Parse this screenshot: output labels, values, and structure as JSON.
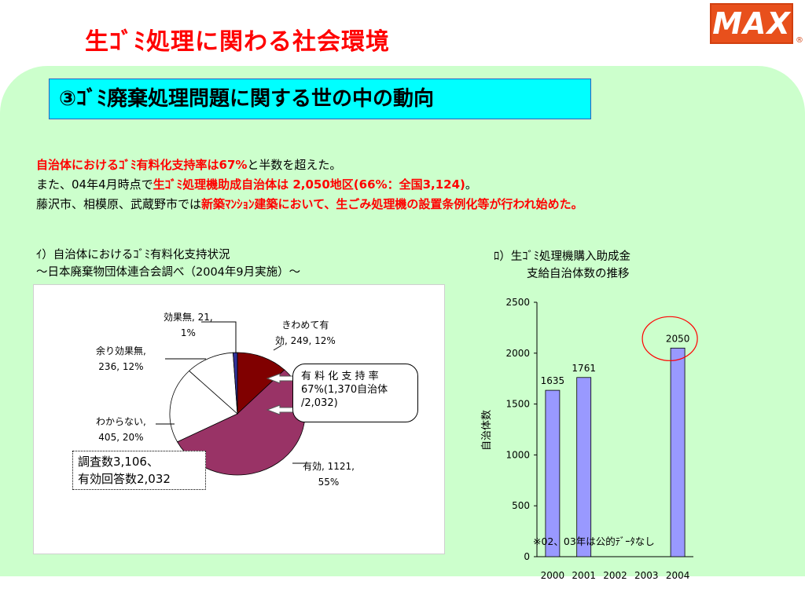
{
  "slide": {
    "title": "生ｺﾞﾐ処理に関わる社会環境",
    "logo_text": "MAX",
    "logo_mark": "®",
    "heading": "③ｺﾞﾐ廃棄処理問題に関する世の中の動向"
  },
  "summary": {
    "line1_red": "自治体におけるｺﾞﾐ有料化支持率は67%",
    "line1_rest": "と半数を超えた。",
    "line2_prefix": "また、04年4月時点で",
    "line2_red": "生ｺﾞﾐ処理機助成自治体は 2,050地区(66%：全国3,124)",
    "line2_suffix": "。",
    "line3_prefix": "藤沢市、相模原、武蔵野市では",
    "line3_red": "新築ﾏﾝｼｮﾝ建築において、生ごみ処理機の設置条例化等が行われ始めた。"
  },
  "pie_section": {
    "title_line1": "ｲ）自治体におけるｺﾞﾐ有料化支持状況",
    "title_line2": "～日本廃棄物団体連合会調べ（2004年9月実施）～",
    "survey_line1": "調査数3,106、",
    "survey_line2": "有効回答数2,032",
    "callout_line1": "有 料 化 支 持 率",
    "callout_line2": "67%(1,370自治体",
    "callout_line3": "/2,032)"
  },
  "bar_section": {
    "title_line1": "ﾛ）生ｺﾞﾐ処理機購入助成金",
    "title_line2": "支給自治体数の推移",
    "note": "※02、03年は公的ﾃﾞｰﾀなし"
  },
  "chart_data": [
    {
      "type": "pie",
      "slices": [
        {
          "label_line1": "きわめて有",
          "label_line2": "効, 249, 12%",
          "label": "きわめて有効",
          "value": 249,
          "percent": 12,
          "color": "#800000"
        },
        {
          "label_line1": "有効, 1121,",
          "label_line2": "55%",
          "label": "有効",
          "value": 1121,
          "percent": 55,
          "color": "#993366"
        },
        {
          "label_line1": "わからない,",
          "label_line2": "405, 20%",
          "label": "わからない",
          "value": 405,
          "percent": 20,
          "color": "#ffffff"
        },
        {
          "label_line1": "余り効果無,",
          "label_line2": "236, 12%",
          "label": "余り効果無",
          "value": 236,
          "percent": 12,
          "color": "#ffffff"
        },
        {
          "label_line1": "効果無, 21,",
          "label_line2": "1%",
          "label": "効果無",
          "value": 21,
          "percent": 1,
          "color": "#333399"
        }
      ]
    },
    {
      "type": "bar",
      "categories": [
        "2000",
        "2001",
        "2002",
        "2003",
        "2004"
      ],
      "values": [
        1635,
        1761,
        null,
        null,
        2050
      ],
      "value_labels": [
        "1635",
        "1761",
        "",
        "",
        "2050"
      ],
      "ylabel": "自治体数",
      "ylim": [
        0,
        2500
      ],
      "yticks": [
        "0",
        "500",
        "1000",
        "1500",
        "2000",
        "2500"
      ],
      "bar_color": "#9999ff",
      "highlight_color": "#ff0000"
    }
  ]
}
